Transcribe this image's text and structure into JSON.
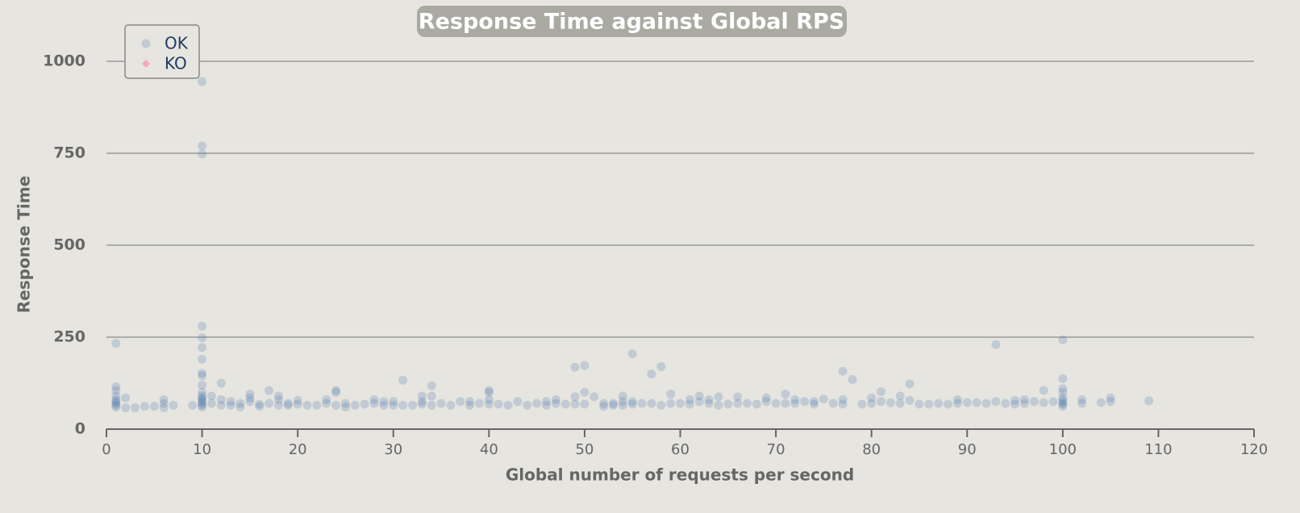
{
  "chart_data": {
    "type": "scatter",
    "title": "Response Time against Global RPS",
    "x_label": "Global number of requests per second",
    "y_label": "Response Time",
    "xlim": [
      0,
      120
    ],
    "xticks": [
      0,
      10,
      20,
      30,
      40,
      50,
      60,
      70,
      80,
      90,
      100,
      110,
      120
    ],
    "ylim": [
      0,
      1000
    ],
    "yticks": [
      0,
      250,
      500,
      750,
      1000
    ],
    "grid": true,
    "legend": "top-left",
    "series": [
      {
        "name": "OK",
        "color": "#4572a7",
        "marker": "circle",
        "x": [
          1,
          1,
          1,
          1,
          1,
          1,
          1,
          1,
          1,
          2,
          2,
          3,
          4,
          5,
          6,
          6,
          6,
          7,
          9,
          10,
          10,
          10,
          10,
          10,
          10,
          10,
          10,
          10,
          10,
          10,
          10,
          10,
          10,
          10,
          10,
          10,
          10,
          11,
          11,
          12,
          12,
          12,
          13,
          13,
          14,
          14,
          15,
          15,
          15,
          16,
          16,
          17,
          17,
          18,
          18,
          18,
          19,
          19,
          20,
          20,
          21,
          22,
          23,
          23,
          24,
          24,
          24,
          25,
          25,
          26,
          27,
          28,
          28,
          29,
          29,
          30,
          30,
          31,
          31,
          32,
          33,
          33,
          33,
          34,
          34,
          34,
          35,
          36,
          37,
          38,
          38,
          39,
          40,
          40,
          40,
          40,
          41,
          42,
          43,
          44,
          45,
          46,
          46,
          47,
          47,
          48,
          49,
          49,
          49,
          50,
          50,
          50,
          51,
          52,
          52,
          53,
          53,
          54,
          54,
          54,
          55,
          55,
          55,
          56,
          57,
          57,
          58,
          58,
          59,
          59,
          60,
          61,
          61,
          62,
          62,
          63,
          63,
          64,
          64,
          65,
          66,
          66,
          67,
          68,
          69,
          69,
          70,
          71,
          71,
          72,
          72,
          73,
          74,
          74,
          75,
          76,
          77,
          77,
          77,
          78,
          79,
          80,
          80,
          81,
          81,
          82,
          83,
          83,
          84,
          84,
          85,
          86,
          87,
          88,
          89,
          89,
          90,
          91,
          92,
          93,
          93,
          94,
          95,
          95,
          96,
          96,
          97,
          98,
          98,
          99,
          100,
          100,
          100,
          100,
          100,
          100,
          100,
          100,
          100,
          102,
          102,
          104,
          105,
          105,
          109
        ],
        "values": [
          233,
          115,
          105,
          90,
          80,
          75,
          70,
          65,
          60,
          85,
          58,
          58,
          62,
          62,
          80,
          70,
          58,
          65,
          65,
          945,
          770,
          748,
          280,
          248,
          222,
          190,
          152,
          145,
          120,
          100,
          90,
          85,
          80,
          75,
          70,
          65,
          60,
          90,
          70,
          125,
          80,
          65,
          75,
          65,
          70,
          60,
          95,
          85,
          75,
          68,
          62,
          105,
          70,
          90,
          80,
          65,
          70,
          65,
          78,
          68,
          65,
          65,
          80,
          70,
          105,
          100,
          65,
          70,
          60,
          65,
          68,
          80,
          70,
          75,
          65,
          75,
          65,
          133,
          65,
          65,
          90,
          75,
          68,
          118,
          90,
          65,
          70,
          65,
          75,
          75,
          65,
          70,
          105,
          100,
          80,
          68,
          68,
          65,
          75,
          65,
          70,
          75,
          65,
          80,
          70,
          68,
          168,
          88,
          68,
          173,
          100,
          68,
          88,
          70,
          62,
          70,
          65,
          90,
          75,
          65,
          205,
          75,
          68,
          70,
          150,
          70,
          170,
          65,
          95,
          70,
          70,
          80,
          68,
          90,
          75,
          80,
          70,
          88,
          65,
          68,
          88,
          70,
          70,
          68,
          85,
          75,
          70,
          95,
          70,
          80,
          70,
          75,
          75,
          68,
          82,
          70,
          157,
          80,
          68,
          135,
          68,
          85,
          70,
          102,
          75,
          72,
          90,
          70,
          123,
          78,
          68,
          68,
          70,
          68,
          80,
          70,
          72,
          72,
          70,
          230,
          75,
          70,
          78,
          68,
          80,
          70,
          75,
          105,
          72,
          75,
          243,
          137,
          110,
          100,
          85,
          78,
          72,
          68,
          62,
          80,
          70,
          72,
          85,
          75,
          77
        ]
      },
      {
        "name": "KO",
        "color": "#f7a8b8",
        "marker": "diamond",
        "x": [],
        "values": []
      }
    ]
  }
}
